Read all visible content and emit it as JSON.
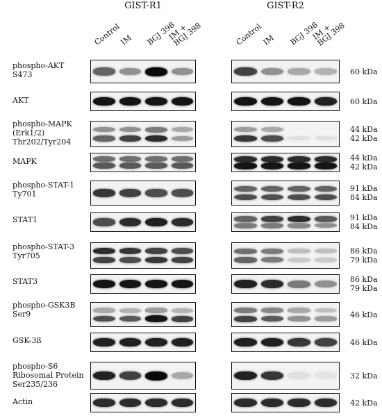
{
  "groups": [
    {
      "name": "GIST-R1"
    },
    {
      "name": "GIST-R2"
    }
  ],
  "lanes": [
    {
      "lines": [
        "Control"
      ]
    },
    {
      "lines": [
        "IM"
      ]
    },
    {
      "lines": [
        "BGJ 398"
      ]
    },
    {
      "lines": [
        "IM +",
        "BGJ 398"
      ]
    }
  ],
  "rows": [
    {
      "label": [
        "phospho-AKT",
        "S473"
      ],
      "kda": [
        "60 kDa"
      ],
      "r1": [
        [
          0.6,
          0.4,
          1.0,
          0.4
        ]
      ],
      "r2": [
        [
          0.75,
          0.4,
          0.3,
          0.25
        ]
      ]
    },
    {
      "label": [
        "AKT"
      ],
      "kda": [
        "60 kDa"
      ],
      "r1": [
        [
          0.95,
          0.95,
          0.95,
          0.95
        ]
      ],
      "r2": [
        [
          0.95,
          0.95,
          0.95,
          0.9
        ]
      ]
    },
    {
      "label": [
        "phospho-MAPK",
        "(Erk1/2)",
        "Thr202/Tyr204"
      ],
      "kda": [
        "44 kDa",
        "42 kDa"
      ],
      "r1": [
        [
          0.4,
          0.4,
          0.5,
          0.3
        ],
        [
          0.6,
          0.75,
          0.85,
          0.35
        ]
      ],
      "r2": [
        [
          0.35,
          0.3,
          0.0,
          0.0
        ],
        [
          0.8,
          0.7,
          0.05,
          0.05
        ]
      ]
    },
    {
      "label": [
        "MAPK"
      ],
      "kda": [
        "44 kDa",
        "42 kDa"
      ],
      "r1": [
        [
          0.55,
          0.55,
          0.55,
          0.55
        ],
        [
          0.65,
          0.65,
          0.65,
          0.65
        ]
      ],
      "r2": [
        [
          0.85,
          0.85,
          0.85,
          0.85
        ],
        [
          0.95,
          0.95,
          0.95,
          0.95
        ]
      ]
    },
    {
      "label": [
        "phospho-STAT-1",
        "Ty701"
      ],
      "kda": [
        "91 kDa",
        "84 kDa"
      ],
      "r1": [
        [
          0.8,
          0.75,
          0.7,
          0.7
        ]
      ],
      "r2": [
        [
          0.6,
          0.6,
          0.6,
          0.6
        ],
        [
          0.7,
          0.7,
          0.7,
          0.7
        ]
      ]
    },
    {
      "label": [
        "STAT1"
      ],
      "kda": [
        "91 kDa",
        "84 kDa"
      ],
      "r1": [
        [
          0.7,
          0.85,
          0.9,
          0.85
        ]
      ],
      "r2": [
        [
          0.6,
          0.75,
          0.85,
          0.65
        ],
        [
          0.5,
          0.5,
          0.45,
          0.4
        ]
      ]
    },
    {
      "label": [
        "phospho-STAT-3",
        "Tyr705"
      ],
      "kda": [
        "86 kDa",
        "79 kDa"
      ],
      "r1": [
        [
          0.85,
          0.8,
          0.75,
          0.7
        ],
        [
          0.75,
          0.7,
          0.8,
          0.75
        ]
      ],
      "r2": [
        [
          0.55,
          0.5,
          0.2,
          0.2
        ],
        [
          0.6,
          0.5,
          0.15,
          0.15
        ]
      ]
    },
    {
      "label": [
        "STAT3"
      ],
      "kda": [
        "86 kDa",
        "79 kDa"
      ],
      "r1": [
        [
          0.95,
          0.95,
          0.95,
          0.95
        ]
      ],
      "r2": [
        [
          0.9,
          0.85,
          0.5,
          0.4
        ]
      ]
    },
    {
      "label": [
        "phospho-GSK3B",
        "Ser9"
      ],
      "kda": [
        "46 kDa"
      ],
      "r1": [
        [
          0.3,
          0.25,
          0.35,
          0.25
        ],
        [
          0.7,
          0.65,
          0.95,
          0.75
        ]
      ],
      "r2": [
        [
          0.5,
          0.45,
          0.3,
          0.2
        ],
        [
          0.75,
          0.65,
          0.4,
          0.35
        ]
      ]
    },
    {
      "label": [
        "GSK-3ß"
      ],
      "kda": [
        "46 kDa"
      ],
      "r1": [
        [
          0.9,
          0.9,
          0.9,
          0.9
        ]
      ],
      "r2": [
        [
          0.9,
          0.9,
          0.8,
          0.75
        ]
      ]
    },
    {
      "label": [
        "phospho-S6",
        "Ribosomal Protein",
        "Ser235/236"
      ],
      "kda": [
        "32 kDa"
      ],
      "r1": [
        [
          0.9,
          0.75,
          1.0,
          0.3
        ]
      ],
      "r2": [
        [
          0.9,
          0.8,
          0.05,
          0.03
        ]
      ]
    },
    {
      "label": [
        "Actin"
      ],
      "kda": [
        "42 kDa"
      ],
      "r1": [
        [
          0.85,
          0.85,
          0.85,
          0.85
        ]
      ],
      "r2": [
        [
          0.85,
          0.85,
          0.85,
          0.85
        ]
      ]
    }
  ]
}
